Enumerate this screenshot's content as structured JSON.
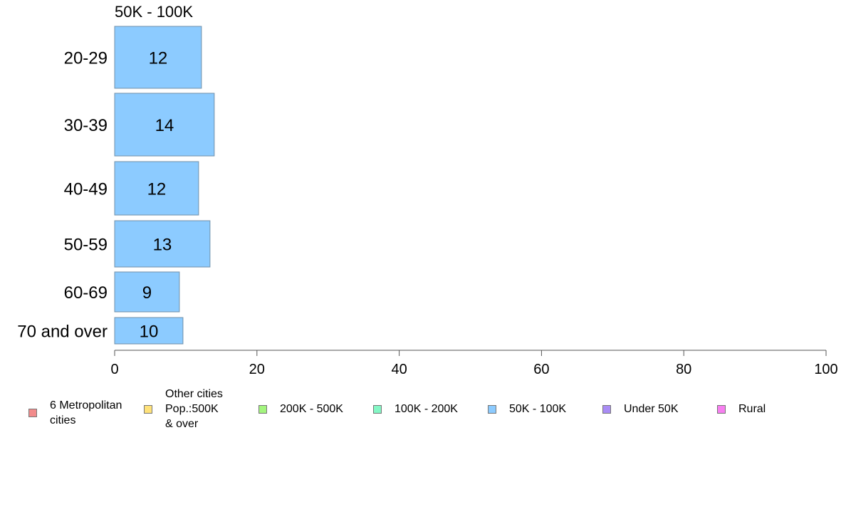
{
  "chart_data": {
    "type": "bar",
    "orientation": "horizontal",
    "title": "50K - 100K",
    "categories": [
      "20-29",
      "30-39",
      "40-49",
      "50-59",
      "60-69",
      "70 and over"
    ],
    "values": [
      12.2,
      14,
      11.8,
      13.4,
      9.1,
      9.6
    ],
    "data_labels": [
      "12",
      "14",
      "12",
      "13",
      "9",
      "10"
    ],
    "series_name": "50K - 100K",
    "xlim": [
      0,
      100
    ],
    "x_ticks": [
      0,
      20,
      40,
      60,
      80,
      100
    ],
    "grid": false,
    "legend_position": "bottom",
    "bar_color": "#8ccbff"
  },
  "legend": {
    "items": [
      {
        "label": "6 Metropolitan\n cities",
        "color": "#f28b8b"
      },
      {
        "label": "Other cities\nPop.:500K\n & over",
        "color": "#ffe27a"
      },
      {
        "label": "200K - 500K",
        "color": "#a3f57e"
      },
      {
        "label": "100K - 200K",
        "color": "#84f7c5"
      },
      {
        "label": "50K - 100K",
        "color": "#8ccbff"
      },
      {
        "label": "Under 50K",
        "color": "#a98cf5"
      },
      {
        "label": "Rural",
        "color": "#f77ff0"
      }
    ]
  }
}
